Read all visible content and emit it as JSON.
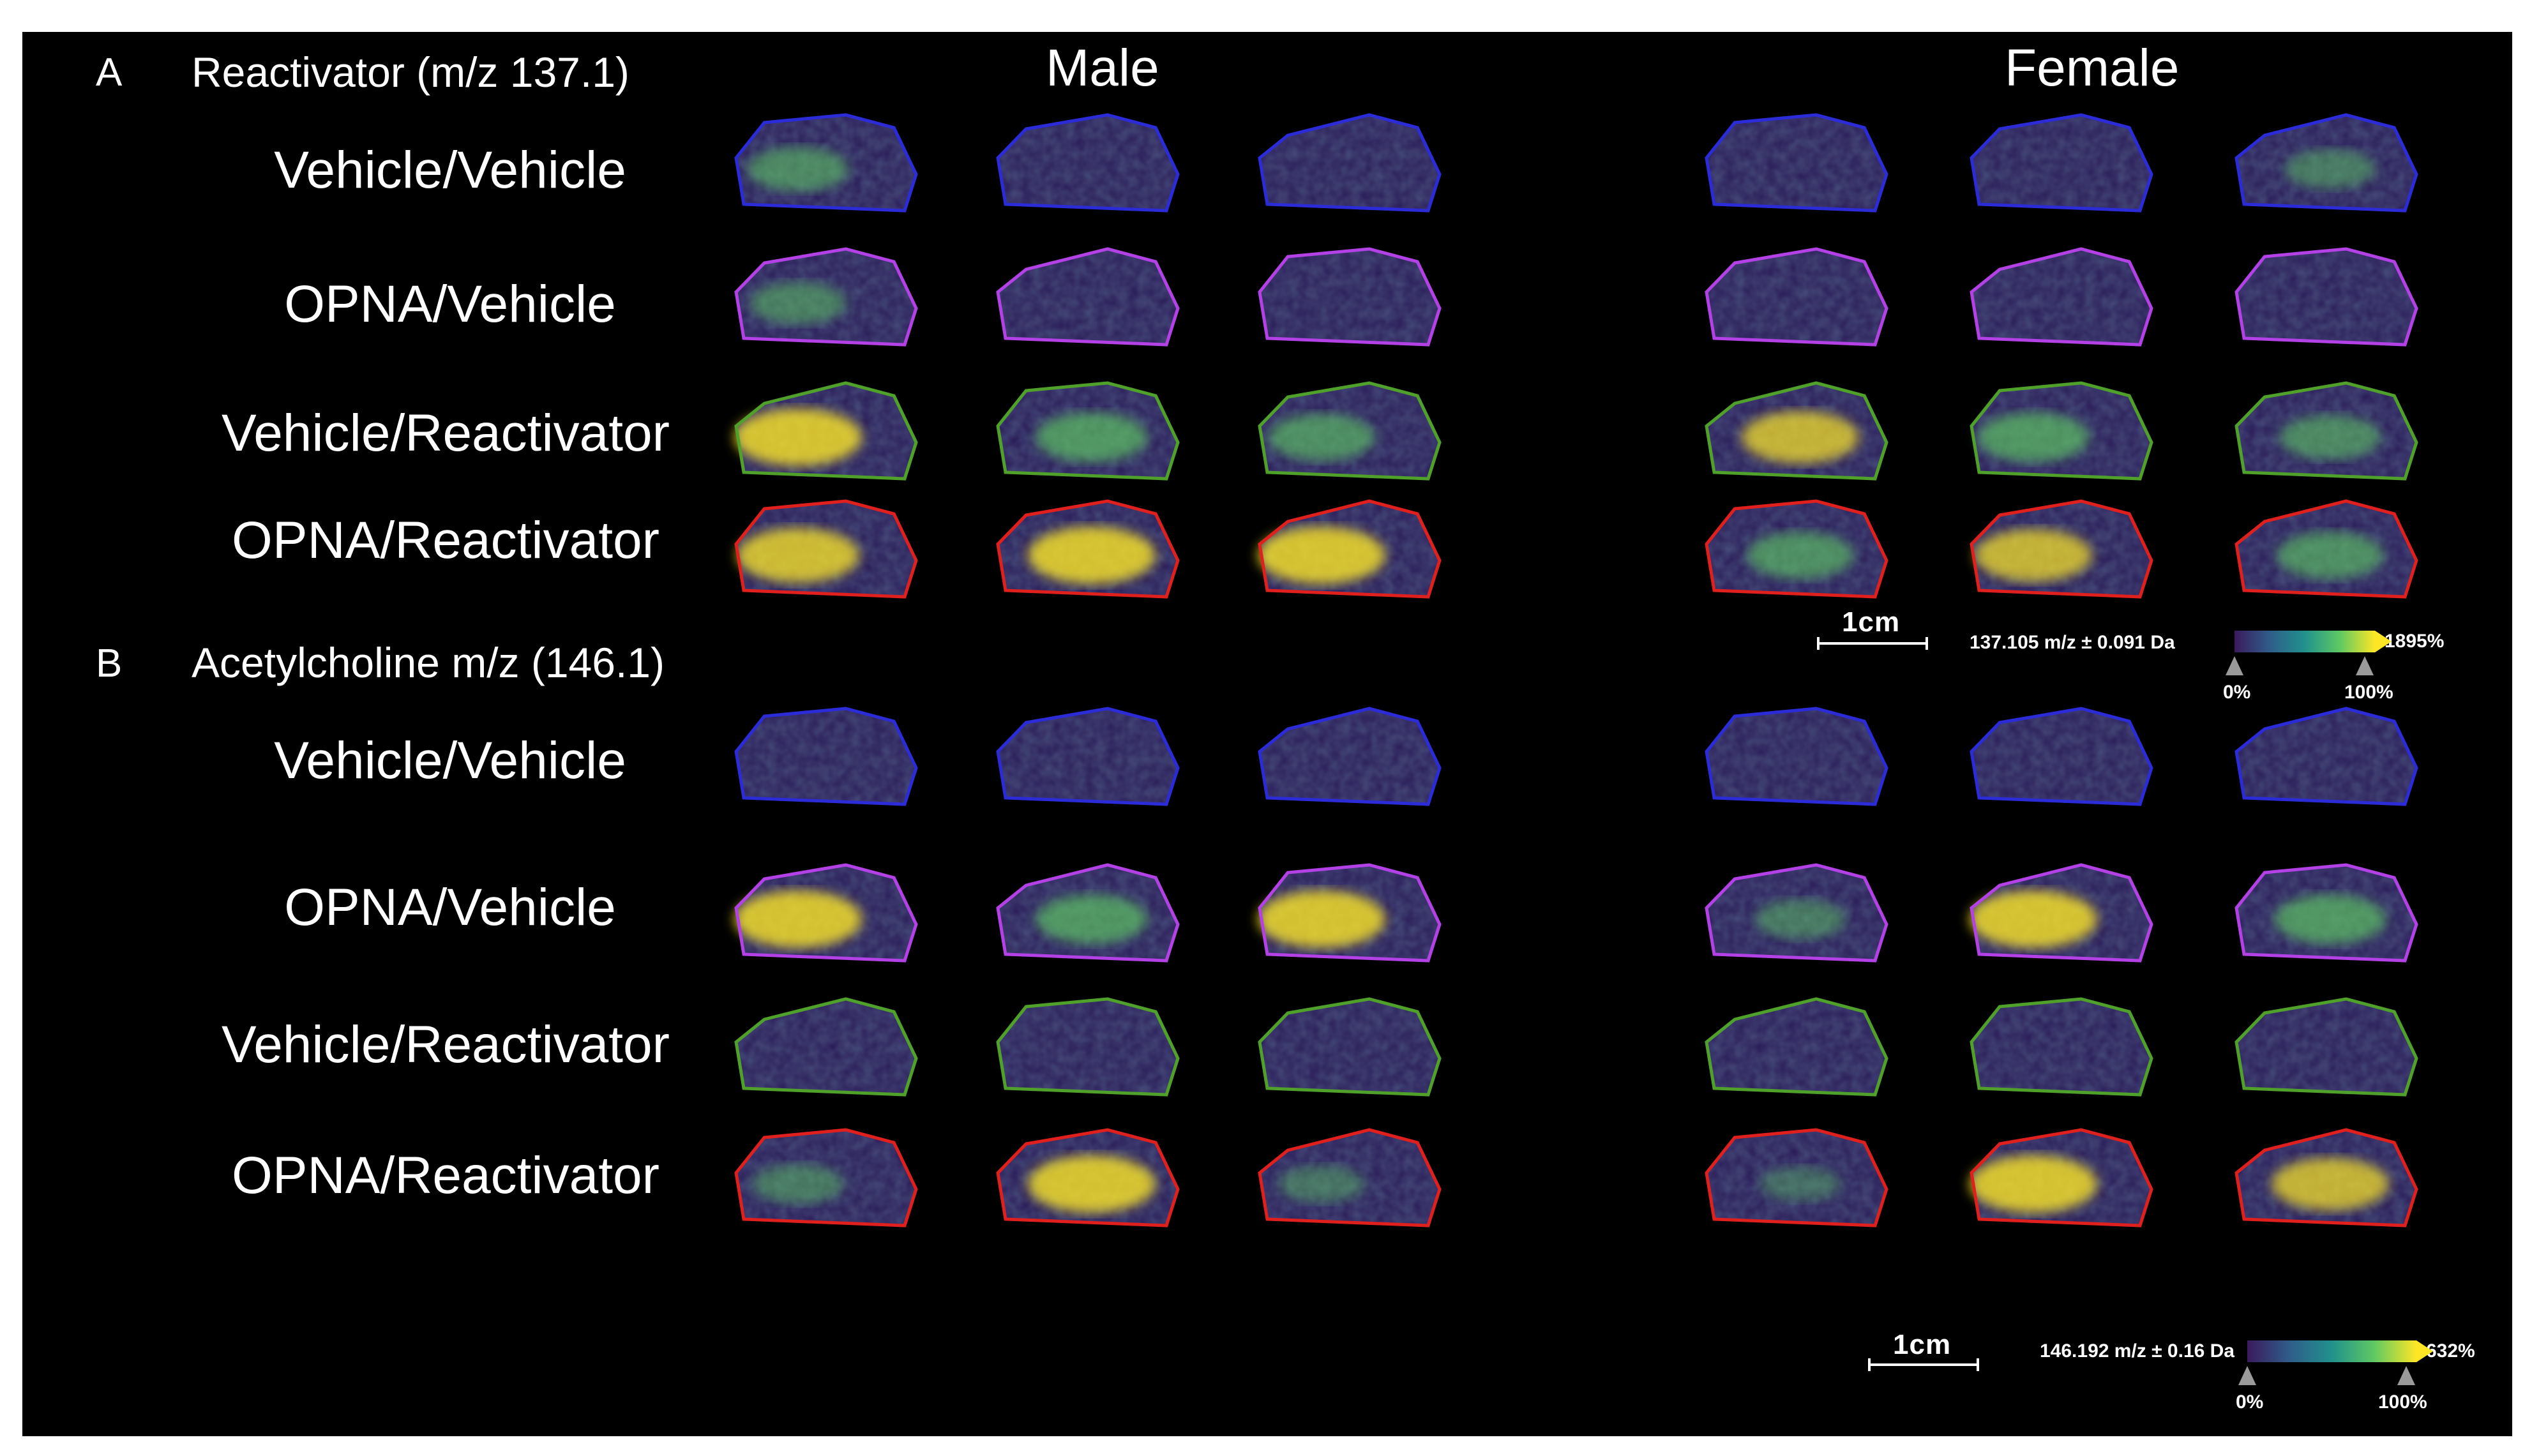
{
  "panels": {
    "a": {
      "letter": "A",
      "title": "Reactivator  (m/z 137.1)"
    },
    "b": {
      "letter": "B",
      "title": "Acetylcholine m/z (146.1)"
    }
  },
  "columns": {
    "male": "Male",
    "female": "Female"
  },
  "rows": [
    "Vehicle/Vehicle",
    "OPNA/Vehicle",
    "Vehicle/Reactivator",
    "OPNA/Reactivator"
  ],
  "group_colors": {
    "Vehicle/Vehicle": "#2b2cd8",
    "OPNA/Vehicle": "#b341e6",
    "Vehicle/Reactivator": "#4fa12a",
    "OPNA/Reactivator": "#e0201c"
  },
  "scale_a": {
    "bar_label": "1cm",
    "mz_label": "137.105 m/z ± 0.091 Da",
    "max_label": "1895%",
    "min_marker": "0%",
    "max_marker": "100%"
  },
  "scale_b": {
    "bar_label": "1cm",
    "mz_label": "146.192 m/z ± 0.16 Da",
    "max_label": "632%",
    "min_marker": "0%",
    "max_marker": "100%"
  },
  "colormap": [
    "#3a1a5c",
    "#2f5d8a",
    "#21918c",
    "#5ec962",
    "#fde725"
  ]
}
